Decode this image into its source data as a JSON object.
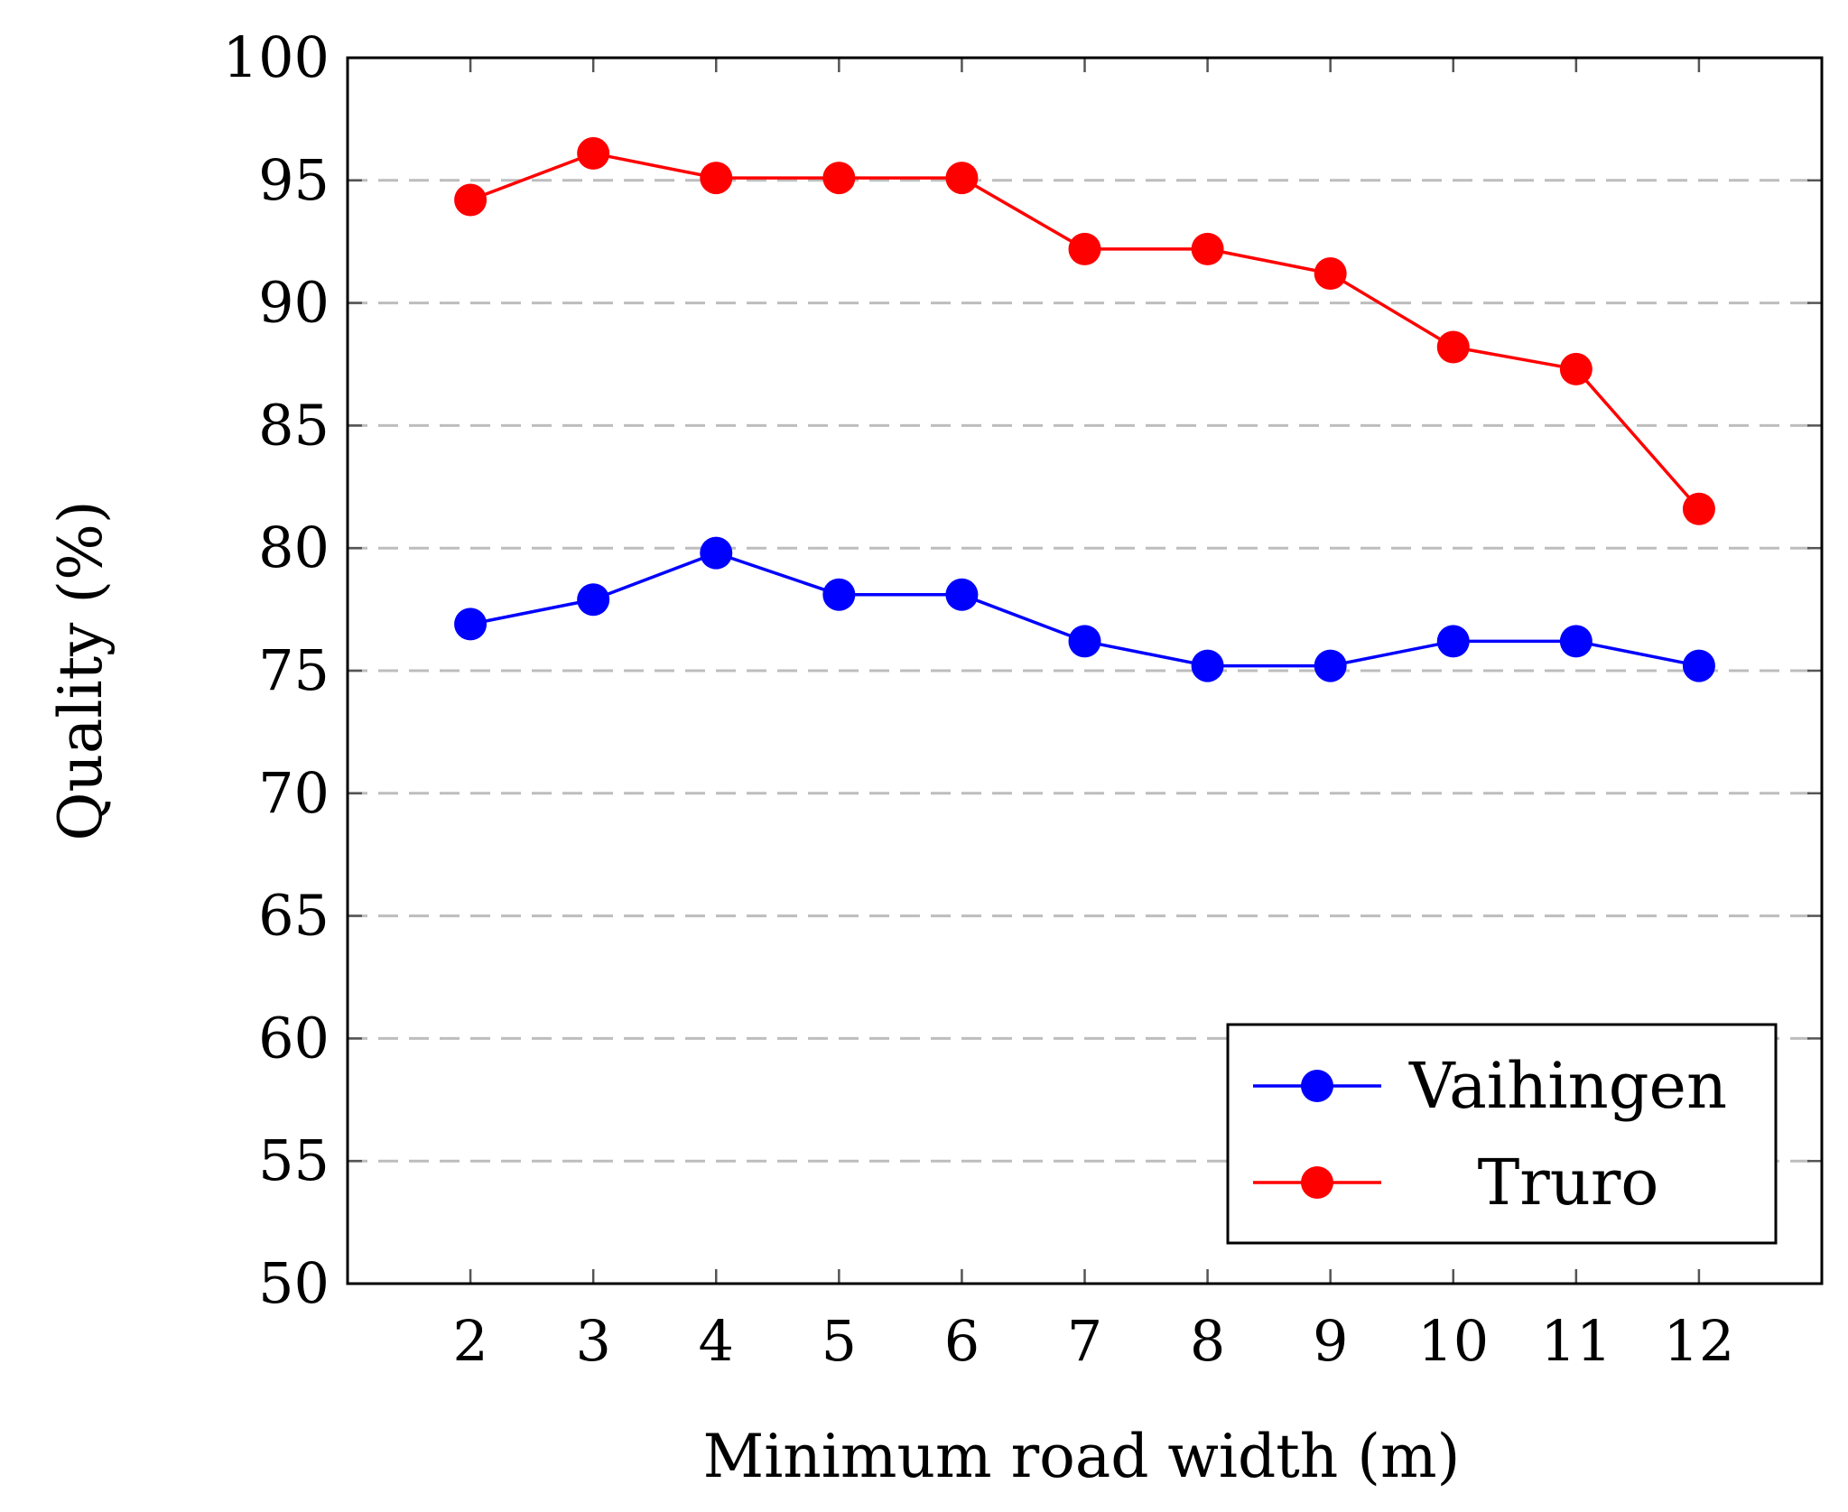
{
  "chart_data": {
    "type": "line",
    "title": "",
    "xlabel": "Minimum road width (m)",
    "ylabel": "Quality (%)",
    "x": [
      2,
      3,
      4,
      5,
      6,
      7,
      8,
      9,
      10,
      11,
      12
    ],
    "xticks": [
      "2",
      "3",
      "4",
      "5",
      "6",
      "7",
      "8",
      "9",
      "10",
      "11",
      "12"
    ],
    "xlim": [
      1,
      13
    ],
    "ylim": [
      50,
      100
    ],
    "yticks": [
      "50",
      "55",
      "60",
      "65",
      "70",
      "75",
      "80",
      "85",
      "90",
      "95",
      "100"
    ],
    "grid": "horizontal dashed",
    "legend_position": "bottom-right",
    "series": [
      {
        "name": "Vaihingen",
        "color": "#0000ff",
        "values": [
          76.9,
          77.9,
          79.8,
          78.1,
          78.1,
          76.2,
          75.2,
          75.2,
          76.2,
          76.2,
          75.2
        ]
      },
      {
        "name": "Truro",
        "color": "#ff0000",
        "values": [
          94.2,
          96.1,
          95.1,
          95.1,
          95.1,
          92.2,
          92.2,
          91.2,
          88.2,
          87.3,
          81.6
        ]
      }
    ]
  }
}
